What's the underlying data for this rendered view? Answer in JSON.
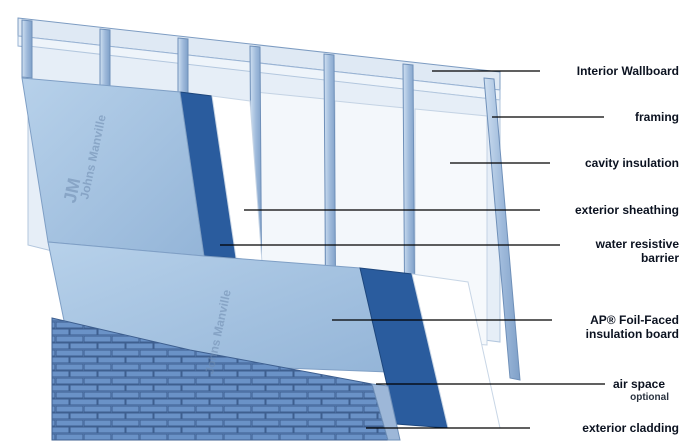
{
  "diagram": {
    "labels": {
      "interior_wallboard": "Interior Wallboard",
      "framing": "framing",
      "cavity_insulation": "cavity insulation",
      "exterior_sheathing": "exterior sheathing",
      "water_resistive_barrier_line1": "water resistive",
      "water_resistive_barrier_line2": "barrier",
      "insulation_board_line1": "AP® Foil-Faced",
      "insulation_board_line2": "insulation board",
      "air_space": "air space",
      "air_space_note": "optional",
      "exterior_cladding": "exterior cladding"
    },
    "brand_mark": "Johns Manville",
    "brand_logo": "JM",
    "colors": {
      "panel": "#a9c6e3",
      "panel_dark": "#8eaed1",
      "stud": "#a7bfdc",
      "barrier": "#2a5c9e",
      "insulation": "#f2f6fa",
      "brick": "#5d86bd",
      "brick_mortar": "#3e5f8f",
      "leader_line": "#000000"
    }
  }
}
